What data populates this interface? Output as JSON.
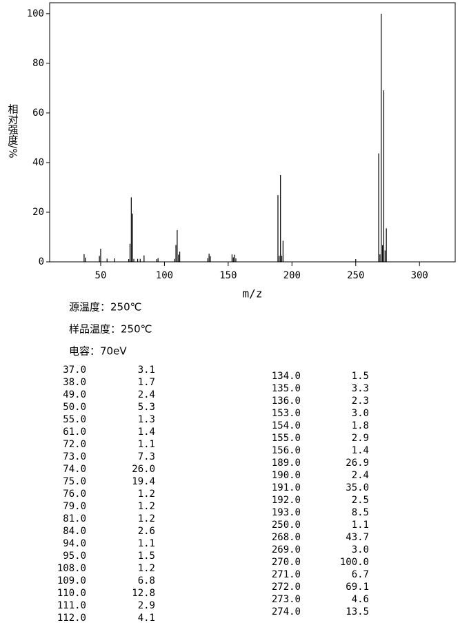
{
  "chart_data": {
    "type": "bar",
    "y_label": "相对强度/%",
    "x_label": "m/z",
    "x": [
      37,
      38,
      49,
      50,
      55,
      61,
      72,
      73,
      74,
      75,
      76,
      79,
      81,
      84,
      94,
      95,
      108,
      109,
      110,
      111,
      112,
      134,
      135,
      136,
      153,
      154,
      155,
      156,
      189,
      190,
      191,
      192,
      193,
      250,
      268,
      269,
      270,
      271,
      272,
      273,
      274
    ],
    "x_labels": [
      "37.0",
      "38.0",
      "49.0",
      "50.0",
      "55.0",
      "61.0",
      "72.0",
      "73.0",
      "74.0",
      "75.0",
      "76.0",
      "79.0",
      "81.0",
      "84.0",
      "94.0",
      "95.0",
      "108.0",
      "109.0",
      "110.0",
      "111.0",
      "112.0",
      "134.0",
      "135.0",
      "136.0",
      "153.0",
      "154.0",
      "155.0",
      "156.0",
      "189.0",
      "190.0",
      "191.0",
      "192.0",
      "193.0",
      "250.0",
      "268.0",
      "269.0",
      "270.0",
      "271.0",
      "272.0",
      "273.0",
      "274.0"
    ],
    "values": [
      3.1,
      1.7,
      2.4,
      5.3,
      1.3,
      1.4,
      1.1,
      7.3,
      26.0,
      19.4,
      1.2,
      1.2,
      1.2,
      2.6,
      1.1,
      1.5,
      1.2,
      6.8,
      12.8,
      2.9,
      4.1,
      1.5,
      3.3,
      2.3,
      3.0,
      1.8,
      2.9,
      1.4,
      26.9,
      2.4,
      35.0,
      2.5,
      8.5,
      1.1,
      43.7,
      3.0,
      100.0,
      6.7,
      69.1,
      4.6,
      13.5
    ],
    "value_labels": [
      "3.1",
      "1.7",
      "2.4",
      "5.3",
      "1.3",
      "1.4",
      "1.1",
      "7.3",
      "26.0",
      "19.4",
      "1.2",
      "1.2",
      "1.2",
      "2.6",
      "1.1",
      "1.5",
      "1.2",
      "6.8",
      "12.8",
      "2.9",
      "4.1",
      "1.5",
      "3.3",
      "2.3",
      "3.0",
      "1.8",
      "2.9",
      "1.4",
      "26.9",
      "2.4",
      "35.0",
      "2.5",
      "8.5",
      "1.1",
      "43.7",
      "3.0",
      "100.0",
      "6.7",
      "69.1",
      "4.6",
      "13.5"
    ],
    "color": "#000000",
    "xlim": [
      10,
      328
    ],
    "xticks": [
      50,
      100,
      150,
      200,
      250,
      300
    ],
    "ylim": [
      0,
      104.4
    ],
    "yticks": [
      0,
      20,
      40,
      60,
      80,
      100
    ]
  },
  "notes": [
    "源温度：250℃",
    "样品温度：250℃",
    "电容：70eV"
  ]
}
